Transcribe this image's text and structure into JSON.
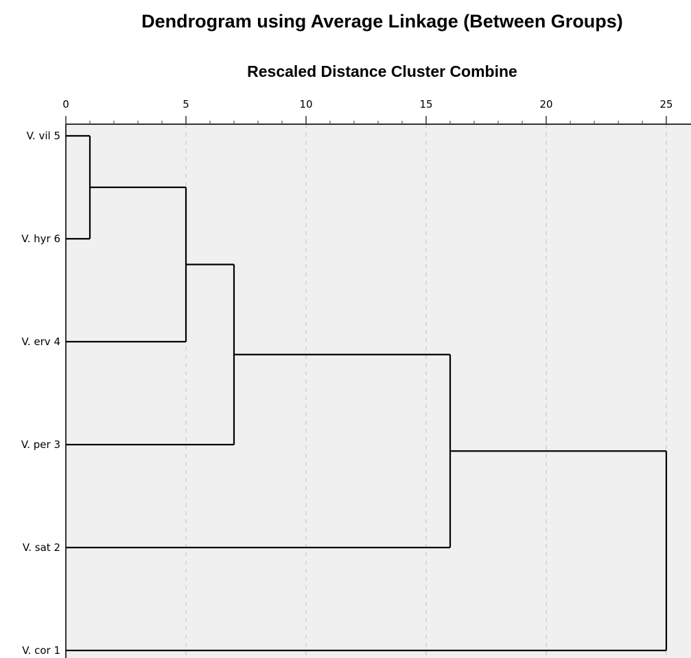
{
  "chart_data": {
    "type": "dendrogram",
    "title": "Dendrogram using Average Linkage (Between Groups)",
    "xlabel": "Rescaled Distance Cluster Combine",
    "xlim": [
      0,
      25
    ],
    "xticks": [
      "0",
      "5",
      "10",
      "15",
      "20",
      "25"
    ],
    "tick_values": [
      0,
      5,
      10,
      15,
      20,
      25
    ],
    "grid": true,
    "leaves": [
      "V. vil 5",
      "V. hyr 6",
      "V. erv 4",
      "V. per 3",
      "V. sat 2",
      "V. cor 1"
    ],
    "merges": [
      {
        "members": [
          "V. vil 5",
          "V. hyr 6"
        ],
        "distance": 1
      },
      {
        "members": [
          "V. vil 5 + V. hyr 6",
          "V. erv 4"
        ],
        "distance": 5
      },
      {
        "members": [
          "V. vil 5 + V. hyr 6 + V. erv 4",
          "V. per 3"
        ],
        "distance": 7
      },
      {
        "members": [
          "V. vil 5 + V. hyr 6 + V. erv 4 + V. per 3",
          "V. sat 2"
        ],
        "distance": 16
      },
      {
        "members": [
          "V. vil 5 + V. hyr 6 + V. erv 4 + V. per 3 + V. sat 2",
          "V. cor 1"
        ],
        "distance": 25
      }
    ],
    "colors": {
      "background": "#f0f0f0",
      "line": "#000000",
      "grid": "#c8c8c8"
    }
  }
}
